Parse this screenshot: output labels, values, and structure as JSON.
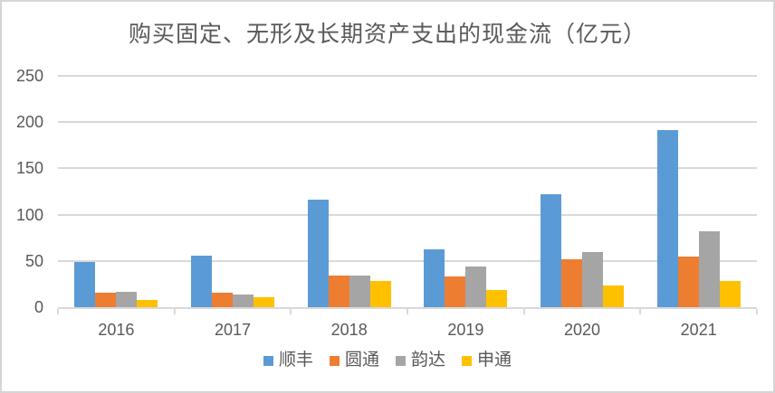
{
  "window": {
    "background_color": "#ffffff",
    "frame_border_color": "#d6d6d6",
    "text_color": "#595959"
  },
  "chart_data": {
    "type": "bar",
    "title": "购买固定、无形及长期资产支出的现金流（亿元）",
    "categories": [
      "2016",
      "2017",
      "2018",
      "2019",
      "2020",
      "2021"
    ],
    "series": [
      {
        "name": "顺丰",
        "color": "#5B9BD5",
        "values": [
          49,
          56,
          116,
          63,
          122,
          191
        ]
      },
      {
        "name": "圆通",
        "color": "#ED7D31",
        "values": [
          16,
          16,
          34,
          33,
          52,
          55
        ]
      },
      {
        "name": "韵达",
        "color": "#A5A5A5",
        "values": [
          17,
          14,
          34,
          44,
          60,
          82
        ]
      },
      {
        "name": "申通",
        "color": "#FFC000",
        "values": [
          8,
          11,
          28,
          19,
          23,
          28
        ]
      }
    ],
    "yticks": [
      0,
      50,
      100,
      150,
      200,
      250
    ],
    "ylim": [
      0,
      250
    ],
    "xlabel": "",
    "ylabel": "",
    "grid": true,
    "gridline_color": "#d9d9d9",
    "axis_line_color": "#d9d9d9",
    "legend_position": "bottom"
  }
}
